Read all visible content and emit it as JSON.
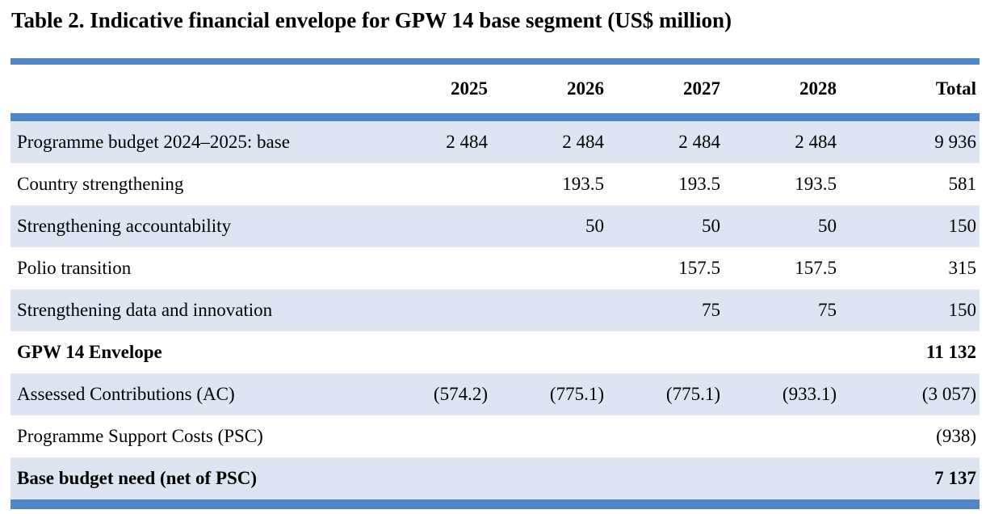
{
  "title": "Table 2. Indicative financial envelope for GPW 14 base segment (US$ million)",
  "colors": {
    "bar_blue": "#5186C8",
    "row_shade": "#DCE5F1",
    "text": "#000000",
    "background": "#FFFFFF"
  },
  "table": {
    "columns": [
      "",
      "2025",
      "2026",
      "2027",
      "2028",
      "Total"
    ],
    "rows": [
      {
        "label": "Programme budget 2024–2025: base",
        "values": [
          "2 484",
          "2 484",
          "2 484",
          "2 484",
          "9 936"
        ]
      },
      {
        "label": "Country strengthening",
        "values": [
          "",
          "193.5",
          "193.5",
          "193.5",
          "581"
        ]
      },
      {
        "label": "Strengthening accountability",
        "values": [
          "",
          "50",
          "50",
          "50",
          "150"
        ]
      },
      {
        "label": "Polio transition",
        "values": [
          "",
          "",
          "157.5",
          "157.5",
          "315"
        ]
      },
      {
        "label": "Strengthening data and innovation",
        "values": [
          "",
          "",
          "75",
          "75",
          "150"
        ]
      },
      {
        "label": "GPW 14 Envelope",
        "values": [
          "",
          "",
          "",
          "",
          "11 132"
        ]
      },
      {
        "label": "Assessed Contributions (AC)",
        "values": [
          "(574.2)",
          "(775.1)",
          "(775.1)",
          "(933.1)",
          "(3 057)"
        ]
      },
      {
        "label": "Programme Support Costs (PSC)",
        "values": [
          "",
          "",
          "",
          "",
          "(938)"
        ]
      },
      {
        "label": "Base budget need (net of PSC)",
        "values": [
          "",
          "",
          "",
          "",
          "7 137"
        ]
      }
    ]
  }
}
